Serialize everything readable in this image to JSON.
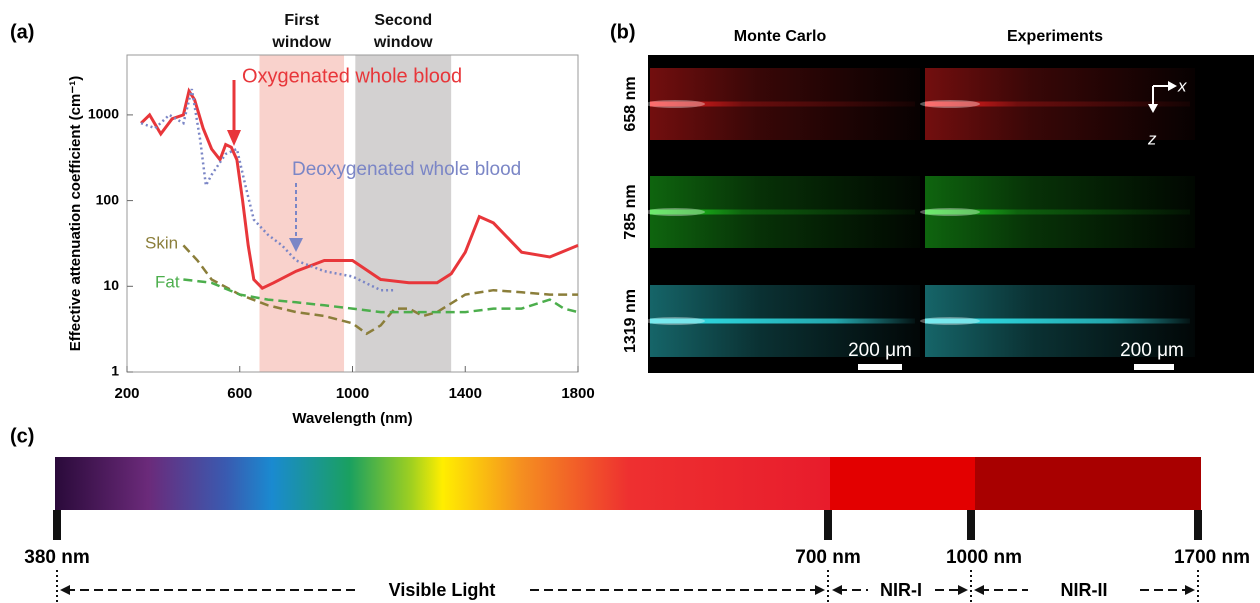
{
  "chart_data": {
    "type": "line",
    "panel_label": "(a)",
    "xlabel": "Wavelength (nm)",
    "ylabel": "Effective attenuation coefficient (cm⁻¹)",
    "xlim": [
      200,
      1800
    ],
    "xticks": [
      200,
      600,
      1000,
      1400,
      1800
    ],
    "ylim": [
      1,
      5000
    ],
    "yticks": [
      1,
      10,
      100,
      1000
    ],
    "yscale": "log",
    "windows": [
      {
        "label": "First window",
        "range": [
          670,
          970
        ],
        "color": "#f9d2cc"
      },
      {
        "label": "Second window",
        "range": [
          1010,
          1350
        ],
        "color": "#d3d1d1"
      }
    ],
    "series": [
      {
        "name": "Oxygenated whole blood",
        "color": "#e8363a",
        "style": "solid",
        "x": [
          250,
          280,
          320,
          360,
          400,
          420,
          440,
          470,
          500,
          530,
          550,
          570,
          590,
          610,
          630,
          650,
          680,
          720,
          800,
          900,
          1000,
          1100,
          1200,
          1300,
          1350,
          1400,
          1450,
          1500,
          1600,
          1700,
          1800
        ],
        "values": [
          800,
          1000,
          600,
          900,
          1000,
          1900,
          1500,
          700,
          400,
          300,
          450,
          420,
          300,
          100,
          30,
          12,
          9.5,
          11,
          15,
          20,
          20,
          12,
          11,
          11,
          14,
          25,
          65,
          55,
          25,
          22,
          30
        ]
      },
      {
        "name": "Deoxygenated whole blood",
        "color": "#7b86c6",
        "style": "dotted",
        "x": [
          250,
          300,
          350,
          400,
          430,
          460,
          480,
          500,
          550,
          590,
          620,
          650,
          700,
          750,
          800,
          900,
          1000,
          1100,
          1150
        ],
        "values": [
          800,
          700,
          1000,
          800,
          2000,
          500,
          150,
          200,
          350,
          400,
          150,
          60,
          40,
          30,
          20,
          15,
          13,
          9,
          9
        ]
      },
      {
        "name": "Skin",
        "color": "#8b7e3a",
        "style": "dashed",
        "x": [
          400,
          450,
          500,
          600,
          700,
          800,
          900,
          1000,
          1050,
          1100,
          1150,
          1200,
          1250,
          1300,
          1400,
          1500,
          1600,
          1700,
          1800
        ],
        "values": [
          30,
          20,
          12,
          8,
          6,
          5,
          4.5,
          3.7,
          2.8,
          3.5,
          5.5,
          5.5,
          4.5,
          5,
          8,
          9,
          8.5,
          8,
          8
        ]
      },
      {
        "name": "Fat",
        "color": "#4cae4c",
        "style": "dashed",
        "x": [
          400,
          500,
          600,
          700,
          800,
          900,
          1000,
          1100,
          1200,
          1300,
          1400,
          1500,
          1600,
          1700,
          1750,
          1800
        ],
        "values": [
          12,
          11,
          8,
          7,
          6.5,
          6,
          5.5,
          5,
          5,
          5,
          5,
          5.5,
          5.5,
          7,
          5.5,
          5
        ]
      }
    ]
  },
  "panel_b": {
    "label": "(b)",
    "columns": [
      "Monte Carlo",
      "Experiments"
    ],
    "rows": [
      {
        "label": "658 nm",
        "color": "#ff2020"
      },
      {
        "label": "785 nm",
        "color": "#20e020"
      },
      {
        "label": "1319 nm",
        "color": "#30e0e8"
      }
    ],
    "scale_bar": "200 μm",
    "axes": [
      "x",
      "z"
    ]
  },
  "panel_c": {
    "label": "(c)",
    "marks": [
      "380 nm",
      "700 nm",
      "1000 nm",
      "1700 nm"
    ],
    "ranges": [
      "Visible Light",
      "NIR-I",
      "NIR-II"
    ]
  }
}
